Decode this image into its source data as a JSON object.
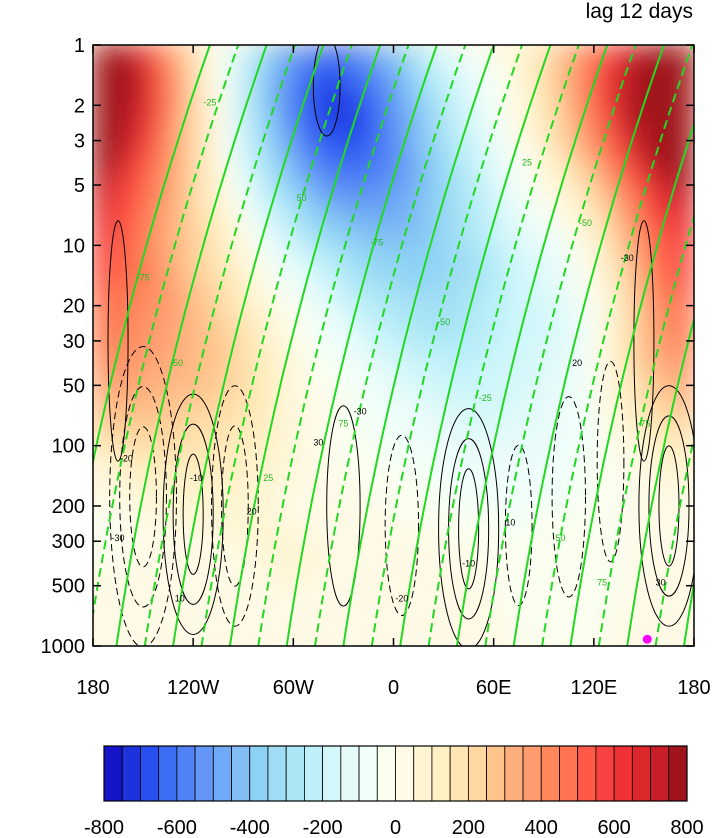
{
  "chart_data": {
    "type": "heatmap",
    "title": "lag 12 days",
    "x_ticks": [
      "180",
      "120W",
      "60W",
      "0",
      "60E",
      "120E",
      "180"
    ],
    "x_tick_values": [
      -180,
      -120,
      -60,
      0,
      60,
      120,
      180
    ],
    "y_ticks": [
      "1",
      "2",
      "3",
      "5",
      "10",
      "20",
      "30",
      "50",
      "100",
      "200",
      "300",
      "500",
      "1000"
    ],
    "y_tick_values": [
      1,
      2,
      3,
      5,
      10,
      20,
      30,
      50,
      100,
      200,
      300,
      500,
      1000
    ],
    "y_scale": "log",
    "y_reversed": true,
    "xlim": [
      -180,
      180
    ],
    "ylim": [
      1000,
      1
    ],
    "colorbar": {
      "levels": [
        -800,
        -750,
        -700,
        -650,
        -600,
        -550,
        -500,
        -450,
        -400,
        -350,
        -300,
        -250,
        -200,
        -150,
        -100,
        -50,
        0,
        50,
        100,
        150,
        200,
        250,
        300,
        350,
        400,
        450,
        500,
        550,
        600,
        650,
        700,
        750,
        800
      ],
      "colors": [
        "#1414c8",
        "#1e32dc",
        "#2850f0",
        "#3c6ef5",
        "#5082f5",
        "#6496f5",
        "#6eaaf5",
        "#82bef5",
        "#8cd2f5",
        "#a0dcf5",
        "#aae6f5",
        "#bef0fa",
        "#d2f8fa",
        "#e6fafa",
        "#f0fffa",
        "#fafff0",
        "#fffae6",
        "#fff5d2",
        "#fff0c3",
        "#ffe6b4",
        "#ffd7a0",
        "#ffc38c",
        "#ffaf7d",
        "#ff9b6e",
        "#ff875a",
        "#ff7350",
        "#ff5a46",
        "#fa4141",
        "#f03237",
        "#dc282d",
        "#c81e28",
        "#a0141e"
      ],
      "tick_labels": [
        "-800",
        "-600",
        "-400",
        "-200",
        "0",
        "200",
        "400",
        "600",
        "800"
      ],
      "tick_values": [
        -800,
        -600,
        -400,
        -200,
        0,
        200,
        400,
        600,
        800
      ]
    },
    "black_contour_labels": [
      "-30",
      "-20",
      "-10",
      "10",
      "20",
      "30"
    ],
    "green_contour_labels": [
      "-75",
      "-50",
      "-25",
      "25",
      "50",
      "75"
    ],
    "marker": {
      "lon": 152,
      "p": 925,
      "color": "#ff00ff"
    }
  }
}
